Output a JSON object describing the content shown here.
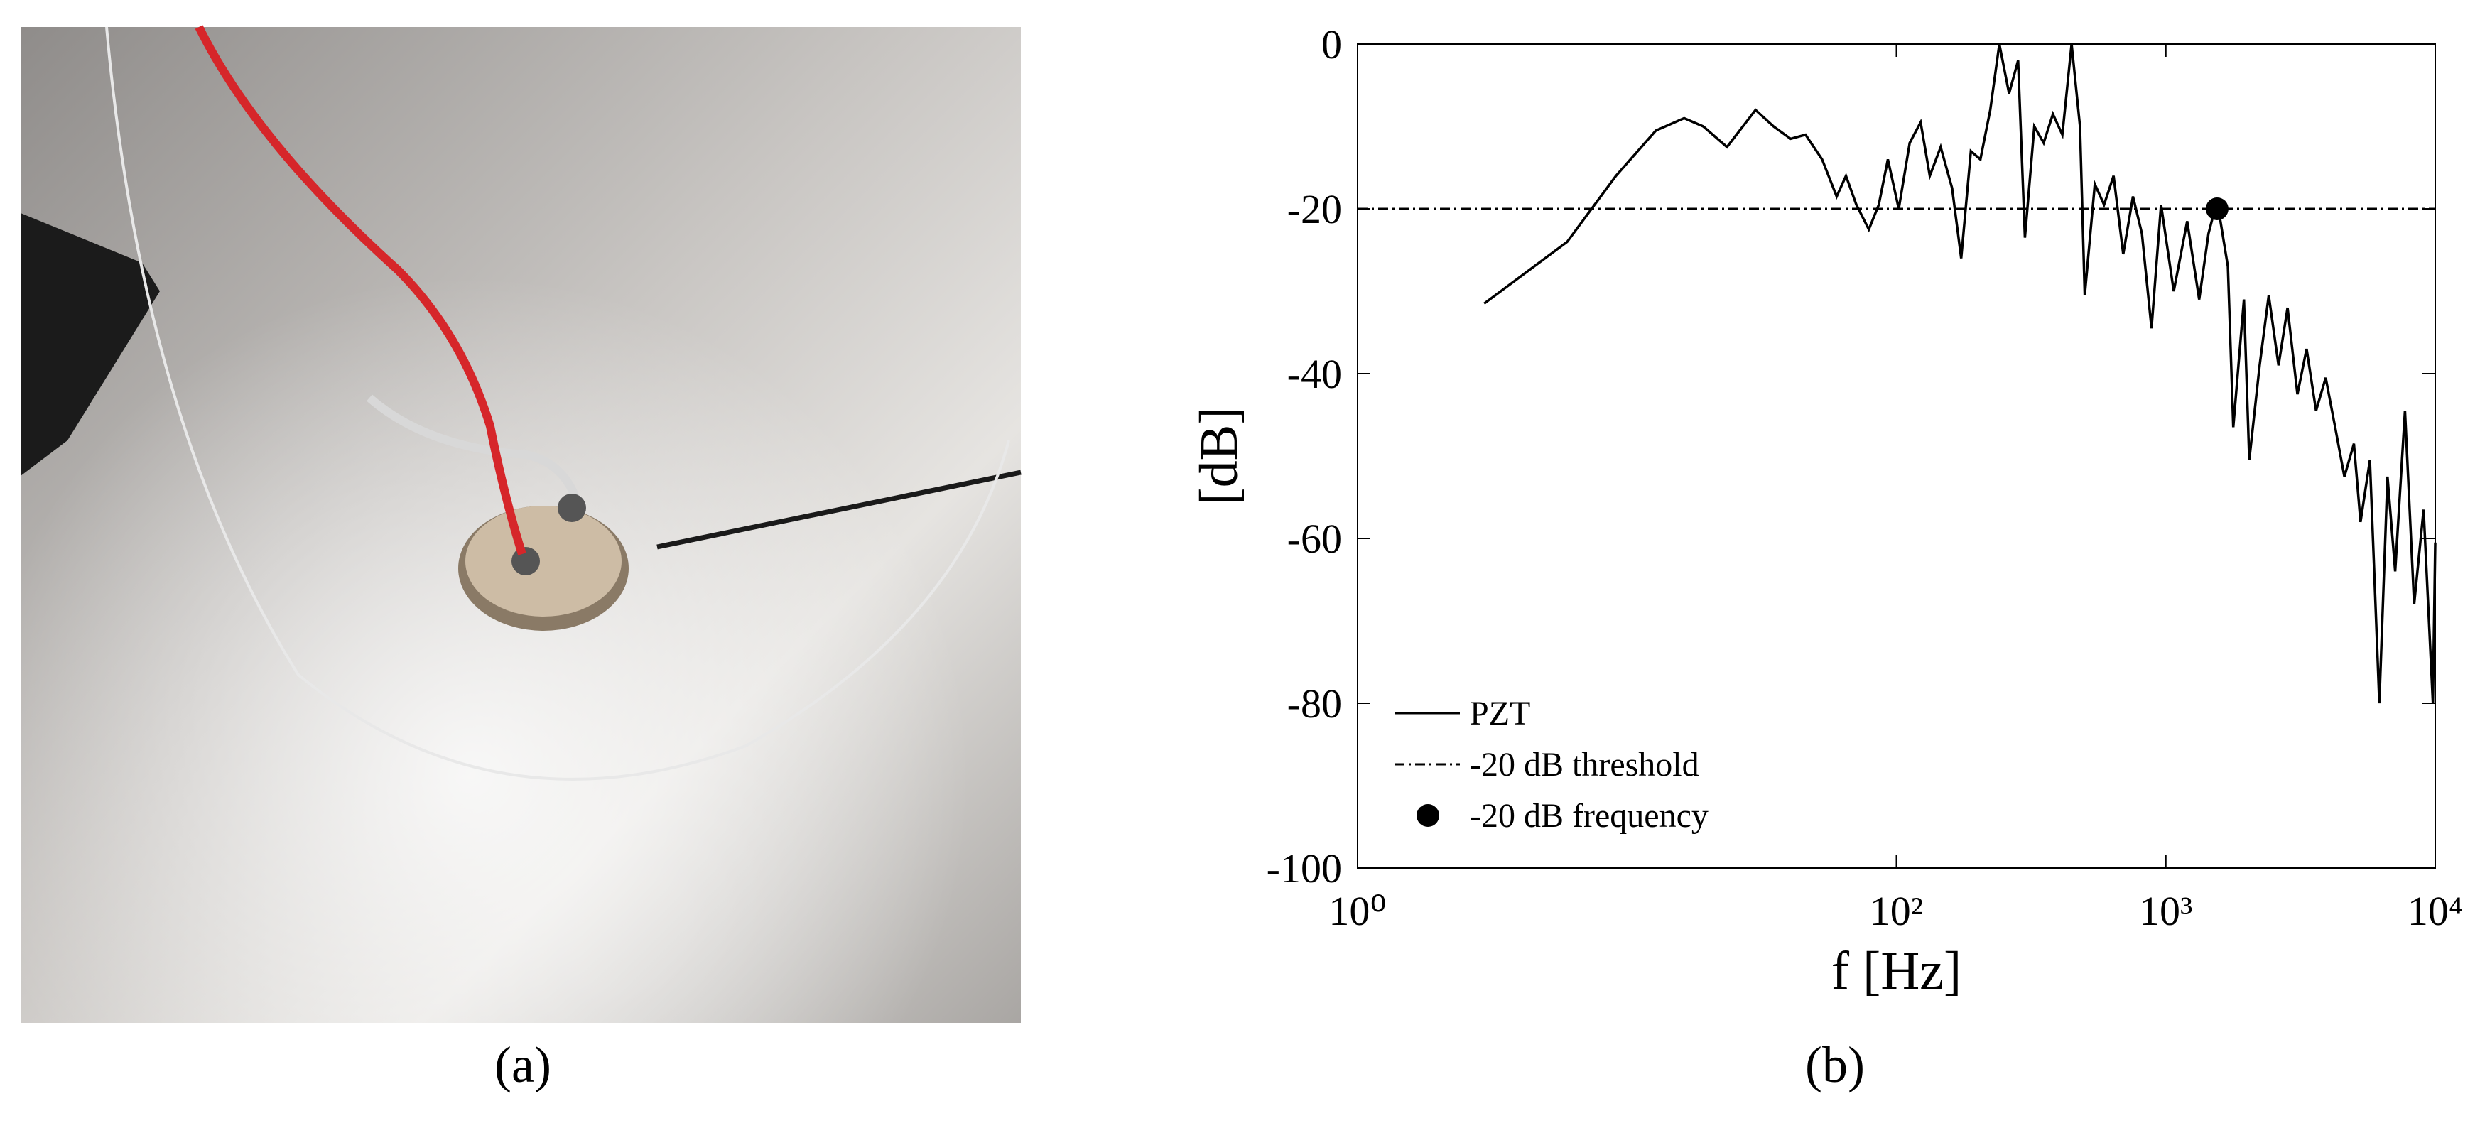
{
  "captions": [
    "(a)",
    "(b)"
  ],
  "chart_data": {
    "type": "line",
    "xlabel": "f [Hz]",
    "ylabel": "[dB]",
    "xscale": "log",
    "xlim": [
      1,
      10000
    ],
    "ylim": [
      -100,
      0
    ],
    "xticks": [
      {
        "value": 1,
        "label": "10⁰"
      },
      {
        "value": 100,
        "label": "10²"
      },
      {
        "value": 1000,
        "label": "10³"
      },
      {
        "value": 10000,
        "label": "10⁴"
      }
    ],
    "yticks": [
      0,
      -20,
      -40,
      -60,
      -80,
      -100
    ],
    "grid": false,
    "legend": "lower left",
    "series": [
      {
        "name": "PZT",
        "color": "#000000",
        "style": "solid",
        "x": [
          2.95,
          6.0,
          9.1,
          12.8,
          16.3,
          19.2,
          23.5,
          30,
          35,
          40.5,
          46,
          53,
          60,
          65,
          71,
          79,
          86,
          93,
          102,
          112,
          123,
          133,
          146,
          161,
          174,
          189,
          205,
          223,
          241,
          262,
          283,
          300,
          325,
          352,
          381,
          413,
          447,
          480,
          500,
          545,
          590,
          640,
          695,
          755,
          815,
          885,
          960,
          1070,
          1200,
          1330,
          1440,
          1550,
          1700,
          1780,
          1950,
          2040,
          2230,
          2410,
          2620,
          2830,
          3080,
          3330,
          3610,
          3920,
          4250,
          4600,
          4990,
          5280,
          5720,
          6200,
          6650,
          7100,
          7720,
          8350,
          9050,
          9800,
          10000
        ],
        "values": [
          -31.5,
          -24,
          -16,
          -10.5,
          -9,
          -10,
          -12.5,
          -8,
          -10,
          -11.5,
          -11,
          -14,
          -18.5,
          -16,
          -19.5,
          -22.5,
          -19.5,
          -14,
          -20,
          -12,
          -9.5,
          -16,
          -12.5,
          -17.5,
          -26,
          -13,
          -14,
          -8,
          0,
          -6,
          -2,
          -23.5,
          -10,
          -12,
          -8.5,
          -11,
          0,
          -10,
          -30.5,
          -17,
          -19.5,
          -16,
          -25.5,
          -18.5,
          -23,
          -34.5,
          -19.5,
          -30,
          -21.5,
          -31,
          -23,
          -19,
          -27,
          -46.5,
          -31,
          -50.5,
          -39,
          -30.5,
          -39,
          -32,
          -42.5,
          -37,
          -44.5,
          -40.5,
          -46.5,
          -52.5,
          -48.5,
          -58,
          -50.5,
          -80,
          -52.5,
          -64,
          -44.5,
          -68,
          -56.5,
          -80,
          -60.5
        ]
      },
      {
        "name": "-20 dB threshold",
        "color": "#000000",
        "style": "dashdot",
        "x": [
          1,
          10000
        ],
        "values": [
          -20,
          -20
        ]
      },
      {
        "name": "-20 dB frequency",
        "color": "#000000",
        "style": "marker",
        "x": [
          1550
        ],
        "values": [
          -20
        ]
      }
    ]
  }
}
